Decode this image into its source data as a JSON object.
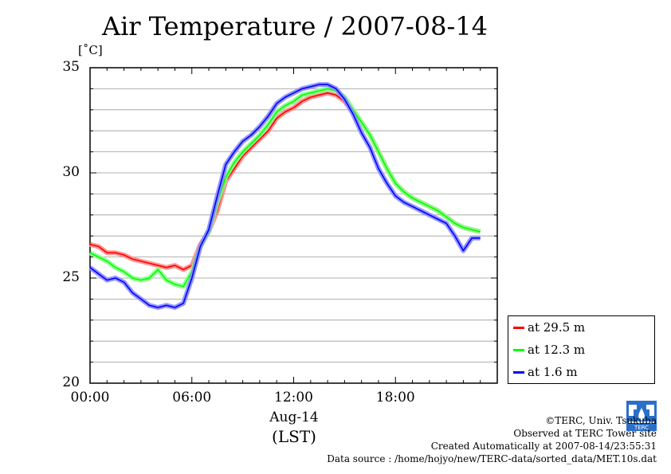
{
  "title": "Air Temperature / 2007-08-14",
  "y_unit": "[˚C]",
  "x_date_label": "Aug-14",
  "x_axis_label": "(LST)",
  "credits": {
    "line1": "©TERC, Univ. Tsukuba",
    "line2": "Observed at TERC Tower site",
    "line3": "Created Automatically at 2007-08-14/23:55:31",
    "line4": "Data source : /home/hojyo/new/TERC-data/sorted_data/MET.10s.dat"
  },
  "logo_text": "TERC",
  "chart_data": {
    "type": "line",
    "title": "Air Temperature / 2007-08-14",
    "ylabel": "[˚C]",
    "xlabel": "(LST)",
    "xlim": [
      0,
      24
    ],
    "ylim": [
      20,
      35
    ],
    "x_ticks": [
      {
        "value": 0,
        "label": "00:00"
      },
      {
        "value": 6,
        "label": "06:00"
      },
      {
        "value": 12,
        "label": "12:00"
      },
      {
        "value": 18,
        "label": "18:00"
      }
    ],
    "y_ticks": [
      {
        "value": 20,
        "label": "20"
      },
      {
        "value": 25,
        "label": "25"
      },
      {
        "value": 30,
        "label": "30"
      },
      {
        "value": 35,
        "label": "35"
      }
    ],
    "grid": true,
    "legend_position": "bottom-right, outside plot",
    "series": [
      {
        "name": "at 29.5 m",
        "color": "#ff0000",
        "points": [
          [
            0,
            26.6
          ],
          [
            0.5,
            26.5
          ],
          [
            1,
            26.2
          ],
          [
            1.5,
            26.2
          ],
          [
            2,
            26.1
          ],
          [
            2.5,
            25.9
          ],
          [
            3,
            25.8
          ],
          [
            3.5,
            25.7
          ],
          [
            4,
            25.6
          ],
          [
            4.5,
            25.5
          ],
          [
            5,
            25.6
          ],
          [
            5.5,
            25.4
          ],
          [
            6,
            25.6
          ],
          [
            6.5,
            26.6
          ],
          [
            7,
            27.2
          ],
          [
            7.5,
            28.2
          ],
          [
            8,
            29.6
          ],
          [
            8.5,
            30.2
          ],
          [
            9,
            30.8
          ],
          [
            9.5,
            31.2
          ],
          [
            10,
            31.6
          ],
          [
            10.5,
            32.0
          ],
          [
            11,
            32.6
          ],
          [
            11.5,
            32.9
          ],
          [
            12,
            33.1
          ],
          [
            12.5,
            33.4
          ],
          [
            13,
            33.6
          ],
          [
            13.5,
            33.7
          ],
          [
            14,
            33.8
          ],
          [
            14.5,
            33.7
          ],
          [
            15,
            33.4
          ],
          [
            15.5,
            32.9
          ],
          [
            16,
            32.4
          ],
          [
            16.5,
            31.8
          ],
          [
            17,
            31.0
          ],
          [
            17.5,
            30.2
          ],
          [
            18,
            29.5
          ],
          [
            18.5,
            29.1
          ],
          [
            19,
            28.8
          ],
          [
            19.5,
            28.6
          ],
          [
            20,
            28.4
          ],
          [
            20.5,
            28.2
          ],
          [
            21,
            27.9
          ],
          [
            21.5,
            27.6
          ],
          [
            22,
            27.4
          ],
          [
            22.5,
            27.3
          ],
          [
            23,
            27.2
          ]
        ]
      },
      {
        "name": "at 12.3 m",
        "color": "#00ff00",
        "points": [
          [
            0,
            26.2
          ],
          [
            0.5,
            26.0
          ],
          [
            1,
            25.8
          ],
          [
            1.5,
            25.5
          ],
          [
            2,
            25.3
          ],
          [
            2.5,
            25.0
          ],
          [
            3,
            24.9
          ],
          [
            3.5,
            25.0
          ],
          [
            4,
            25.4
          ],
          [
            4.5,
            24.9
          ],
          [
            5,
            24.7
          ],
          [
            5.5,
            24.6
          ],
          [
            6,
            25.3
          ],
          [
            6.5,
            26.5
          ],
          [
            7,
            27.2
          ],
          [
            7.5,
            28.6
          ],
          [
            8,
            29.8
          ],
          [
            8.5,
            30.5
          ],
          [
            9,
            31.0
          ],
          [
            9.5,
            31.4
          ],
          [
            10,
            31.8
          ],
          [
            10.5,
            32.3
          ],
          [
            11,
            32.9
          ],
          [
            11.5,
            33.2
          ],
          [
            12,
            33.4
          ],
          [
            12.5,
            33.7
          ],
          [
            13,
            33.8
          ],
          [
            13.5,
            33.9
          ],
          [
            14,
            34.0
          ],
          [
            14.5,
            33.9
          ],
          [
            15,
            33.6
          ],
          [
            15.5,
            33.0
          ],
          [
            16,
            32.4
          ],
          [
            16.5,
            31.8
          ],
          [
            17,
            31.0
          ],
          [
            17.5,
            30.2
          ],
          [
            18,
            29.5
          ],
          [
            18.5,
            29.1
          ],
          [
            19,
            28.8
          ],
          [
            19.5,
            28.6
          ],
          [
            20,
            28.4
          ],
          [
            20.5,
            28.2
          ],
          [
            21,
            27.9
          ],
          [
            21.5,
            27.6
          ],
          [
            22,
            27.4
          ],
          [
            22.5,
            27.3
          ],
          [
            23,
            27.2
          ]
        ]
      },
      {
        "name": "at 1.6 m",
        "color": "#0000ff",
        "points": [
          [
            0,
            25.5
          ],
          [
            0.5,
            25.2
          ],
          [
            1,
            24.9
          ],
          [
            1.5,
            25.0
          ],
          [
            2,
            24.8
          ],
          [
            2.5,
            24.3
          ],
          [
            3,
            24.0
          ],
          [
            3.5,
            23.7
          ],
          [
            4,
            23.6
          ],
          [
            4.5,
            23.7
          ],
          [
            5,
            23.6
          ],
          [
            5.5,
            23.8
          ],
          [
            6,
            25.0
          ],
          [
            6.5,
            26.5
          ],
          [
            7,
            27.3
          ],
          [
            7.5,
            28.9
          ],
          [
            8,
            30.4
          ],
          [
            8.5,
            31.0
          ],
          [
            9,
            31.5
          ],
          [
            9.5,
            31.8
          ],
          [
            10,
            32.2
          ],
          [
            10.5,
            32.7
          ],
          [
            11,
            33.3
          ],
          [
            11.5,
            33.6
          ],
          [
            12,
            33.8
          ],
          [
            12.5,
            34.0
          ],
          [
            13,
            34.1
          ],
          [
            13.5,
            34.2
          ],
          [
            14,
            34.2
          ],
          [
            14.5,
            34.0
          ],
          [
            15,
            33.5
          ],
          [
            15.5,
            32.8
          ],
          [
            16,
            31.9
          ],
          [
            16.5,
            31.2
          ],
          [
            17,
            30.2
          ],
          [
            17.5,
            29.5
          ],
          [
            18,
            28.9
          ],
          [
            18.5,
            28.6
          ],
          [
            19,
            28.4
          ],
          [
            19.5,
            28.2
          ],
          [
            20,
            28.0
          ],
          [
            20.5,
            27.8
          ],
          [
            21,
            27.6
          ],
          [
            21.5,
            27.0
          ],
          [
            22,
            26.3
          ],
          [
            22.5,
            26.9
          ],
          [
            23,
            26.9
          ]
        ]
      }
    ]
  }
}
